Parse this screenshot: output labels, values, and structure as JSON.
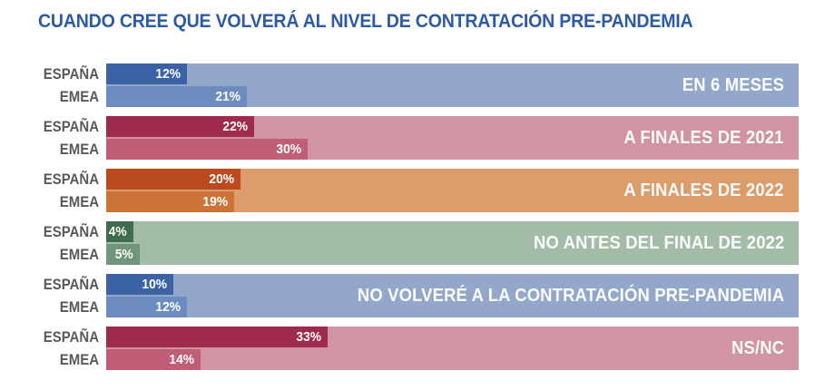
{
  "title": "CUANDO CREE QUE VOLVERÁ AL NIVEL DE CONTRATACIÓN PRE-PANDEMIA",
  "title_color": "#2B5AA6",
  "chart_data": {
    "type": "bar",
    "orientation": "horizontal",
    "unit": "%",
    "series_labels": [
      "ESPAÑA",
      "EMEA"
    ],
    "value_scale_pct_per_unit": 0.97,
    "groups": [
      {
        "category": "EN 6 MESES",
        "espana": 12,
        "emea": 21,
        "colors": {
          "dark": "#3A62A4",
          "mid": "#6C8CBF",
          "bg": "#93A7CA"
        }
      },
      {
        "category": "A FINALES DE 2021",
        "espana": 22,
        "emea": 30,
        "colors": {
          "dark": "#9E2B4B",
          "mid": "#C05E77",
          "bg": "#D094A3"
        }
      },
      {
        "category": "A FINALES DE 2022",
        "espana": 20,
        "emea": 19,
        "colors": {
          "dark": "#BB4A1F",
          "mid": "#CB7338",
          "bg": "#DC9C6B"
        }
      },
      {
        "category": "NO ANTES DEL FINAL DE 2022",
        "espana": 4,
        "emea": 5,
        "colors": {
          "dark": "#3F6B4F",
          "mid": "#70957A",
          "bg": "#A2BCA7"
        }
      },
      {
        "category": "NO VOLVERÉ A LA CONTRATACIÓN PRE-PANDEMIA",
        "espana": 10,
        "emea": 12,
        "colors": {
          "dark": "#3A62A4",
          "mid": "#6C8CBF",
          "bg": "#93A7CA"
        }
      },
      {
        "category": "NS/NC",
        "espana": 33,
        "emea": 14,
        "colors": {
          "dark": "#9E2B4B",
          "mid": "#C05E77",
          "bg": "#D094A3"
        }
      }
    ]
  }
}
